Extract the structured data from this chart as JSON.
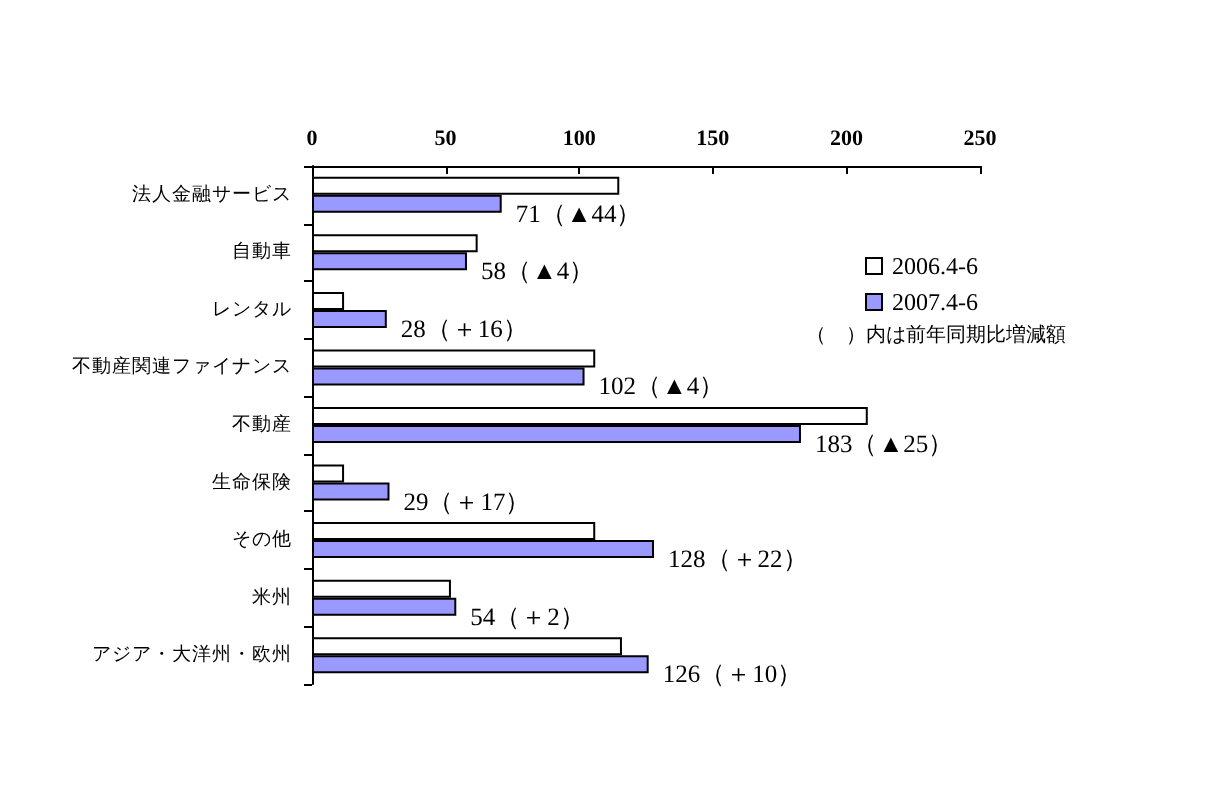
{
  "chart_data": {
    "type": "bar",
    "orientation": "horizontal",
    "categories": [
      "法人金融サービス",
      "自動車",
      "レンタル",
      "不動産関連ファイナンス",
      "不動産",
      "生命保険",
      "その他",
      "米州",
      "アジア・大洋州・欧州"
    ],
    "series": [
      {
        "name": "2006.4-6",
        "color": "#ffffff",
        "values": [
          115,
          62,
          12,
          106,
          208,
          12,
          106,
          52,
          116
        ]
      },
      {
        "name": "2007.4-6",
        "color": "#9999ff",
        "values": [
          71,
          58,
          28,
          102,
          183,
          29,
          128,
          54,
          126
        ],
        "value_labels": [
          "71（▲44）",
          "58（▲4）",
          "28（＋16）",
          "102（▲4）",
          "183（▲25）",
          "29（＋17）",
          "128（＋22）",
          "54（＋2）",
          "126（＋10）"
        ]
      }
    ],
    "xlim": [
      0,
      250
    ],
    "xticks": [
      0,
      50,
      100,
      150,
      200,
      250
    ],
    "grid": false,
    "legend": "top right",
    "annotations": [
      "（　）内は前年同期比増減額"
    ]
  }
}
